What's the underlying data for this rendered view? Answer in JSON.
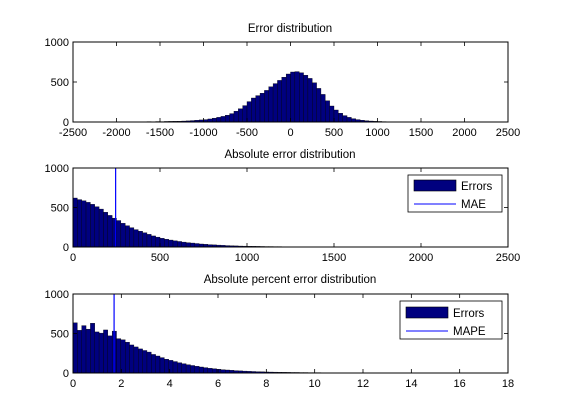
{
  "figure": {
    "background": "#ffffff",
    "bar_color": "#00007f",
    "bar_edge_color": "#000000",
    "line_color": "#0000ff"
  },
  "chart_data": [
    {
      "type": "bar",
      "title": "Error distribution",
      "xlabel": "",
      "ylabel": "",
      "xlim": [
        -2500,
        2500
      ],
      "ylim": [
        0,
        1000
      ],
      "xticks": [
        "-2500",
        "-2000",
        "-1500",
        "-1000",
        "-500",
        "0",
        "500",
        "1000",
        "1500",
        "2000",
        "2500"
      ],
      "yticks": [
        "0",
        "500",
        "1000"
      ],
      "grid": false,
      "bins": {
        "start": -2350,
        "width": 50,
        "values": [
          3,
          0,
          0,
          0,
          2,
          3,
          0,
          2,
          3,
          0,
          2,
          3,
          4,
          3,
          5,
          4,
          6,
          5,
          7,
          8,
          9,
          10,
          12,
          14,
          18,
          22,
          26,
          30,
          38,
          48,
          58,
          70,
          85,
          105,
          135,
          165,
          205,
          255,
          300,
          330,
          360,
          395,
          440,
          480,
          520,
          560,
          600,
          625,
          630,
          615,
          585,
          545,
          490,
          420,
          345,
          265,
          200,
          150,
          110,
          80,
          58,
          42,
          30,
          22,
          16,
          12,
          9,
          7,
          5,
          4,
          3,
          3,
          2,
          2,
          1,
          1,
          1,
          0,
          1,
          0,
          0,
          0,
          1,
          0,
          0,
          0,
          0,
          0,
          0,
          0,
          0,
          0,
          0,
          3
        ]
      }
    },
    {
      "type": "bar",
      "title": "Absolute error distribution",
      "xlabel": "",
      "ylabel": "",
      "xlim": [
        0,
        2500
      ],
      "ylim": [
        0,
        1000
      ],
      "xticks": [
        "0",
        "500",
        "1000",
        "1500",
        "2000",
        "2500"
      ],
      "yticks": [
        "0",
        "500",
        "1000"
      ],
      "grid": false,
      "legend": {
        "placement": "top-right",
        "entries": [
          "Errors",
          "MAE"
        ]
      },
      "reference_line": {
        "x": 245
      },
      "bins": {
        "start": 0,
        "width": 25,
        "values": [
          620,
          600,
          585,
          565,
          540,
          510,
          480,
          440,
          400,
          365,
          335,
          300,
          270,
          245,
          220,
          200,
          180,
          160,
          140,
          125,
          110,
          98,
          88,
          78,
          70,
          62,
          55,
          50,
          44,
          38,
          34,
          30,
          27,
          24,
          21,
          18,
          16,
          14,
          12,
          11,
          10,
          9,
          8,
          7,
          6,
          6,
          5,
          5,
          4,
          4,
          4,
          3,
          3,
          3,
          3,
          2,
          2,
          2,
          2,
          2,
          2,
          2,
          1,
          1,
          1,
          1,
          1,
          1,
          1,
          1,
          1,
          1,
          1,
          1,
          1,
          1,
          1,
          1,
          1,
          1,
          1,
          1,
          1,
          1,
          1,
          1,
          1,
          1,
          1,
          1,
          0,
          0,
          0,
          3
        ]
      }
    },
    {
      "type": "bar",
      "title": "Absolute percent error distribution",
      "xlabel": "",
      "ylabel": "",
      "xlim": [
        0,
        18
      ],
      "ylim": [
        0,
        1000
      ],
      "xticks": [
        "0",
        "2",
        "4",
        "6",
        "8",
        "10",
        "12",
        "14",
        "16",
        "18"
      ],
      "yticks": [
        "0",
        "500",
        "1000"
      ],
      "grid": false,
      "legend": {
        "placement": "top-right",
        "entries": [
          "Errors",
          "MAPE"
        ]
      },
      "reference_line": {
        "x": 1.7
      },
      "bins": {
        "start": 0,
        "width": 0.18,
        "values": [
          635,
          540,
          600,
          555,
          630,
          520,
          505,
          545,
          470,
          530,
          435,
          420,
          390,
          355,
          330,
          305,
          285,
          265,
          235,
          215,
          195,
          175,
          160,
          145,
          130,
          118,
          105,
          95,
          85,
          76,
          68,
          60,
          54,
          48,
          42,
          38,
          34,
          30,
          27,
          24,
          21,
          19,
          17,
          15,
          13,
          12,
          11,
          10,
          9,
          8,
          7,
          7,
          6,
          6,
          5,
          5,
          5,
          4,
          4,
          4,
          3,
          3,
          3,
          3,
          2,
          2,
          2,
          2,
          2,
          2,
          2,
          2,
          1,
          1,
          1,
          1,
          1,
          1,
          1,
          1,
          1,
          1,
          1,
          1,
          1,
          1,
          1,
          1,
          1,
          1,
          1,
          1
        ]
      }
    }
  ]
}
